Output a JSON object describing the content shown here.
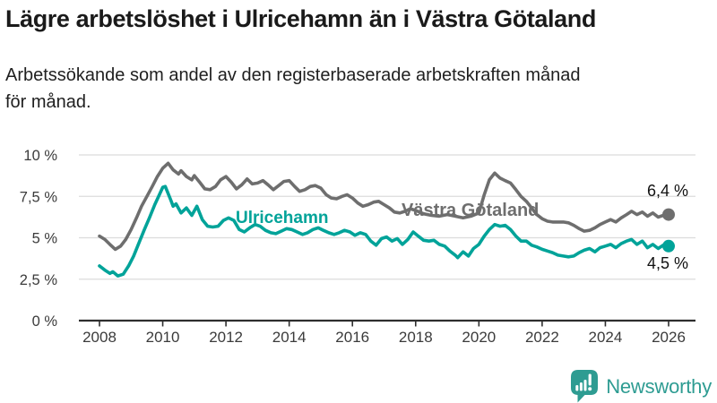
{
  "header": {
    "title": "Lägre arbetslöshet i Ulricehamn än i Västra Götaland",
    "subtitle_line1": "Arbetssökande som andel av den registerbaserade arbetskraften månad",
    "subtitle_line2": "för månad."
  },
  "chart_data": {
    "type": "line",
    "title": "Lägre arbetslöshet i Ulricehamn än i Västra Götaland",
    "subtitle": "Arbetssökande som andel av den registerbaserade arbetskraften månad för månad.",
    "xlabel": "",
    "ylabel": "",
    "unit": "%",
    "grid": true,
    "xlim": [
      2008,
      2026
    ],
    "ylim": [
      0,
      10
    ],
    "x_ticks": [
      2008,
      2010,
      2012,
      2014,
      2016,
      2018,
      2020,
      2022,
      2024,
      2026
    ],
    "y_ticks": [
      {
        "value": 0,
        "label": "0 %"
      },
      {
        "value": 2.5,
        "label": "2,5 %"
      },
      {
        "value": 5,
        "label": "5 %"
      },
      {
        "value": 7.5,
        "label": "7,5 %"
      },
      {
        "value": 10,
        "label": "10 %"
      }
    ],
    "series": [
      {
        "id": "ulricehamn",
        "name": "Ulricehamn",
        "color": "#00a399",
        "end_label": "4,5 %",
        "last_value": 4.5,
        "points": [
          [
            2008.0,
            3.3
          ],
          [
            2008.17,
            3.05
          ],
          [
            2008.33,
            2.85
          ],
          [
            2008.42,
            2.95
          ],
          [
            2008.58,
            2.7
          ],
          [
            2008.75,
            2.8
          ],
          [
            2008.92,
            3.3
          ],
          [
            2009.08,
            3.9
          ],
          [
            2009.25,
            4.7
          ],
          [
            2009.42,
            5.5
          ],
          [
            2009.58,
            6.2
          ],
          [
            2009.75,
            7.0
          ],
          [
            2009.92,
            7.7
          ],
          [
            2010.0,
            8.05
          ],
          [
            2010.08,
            8.1
          ],
          [
            2010.25,
            7.3
          ],
          [
            2010.33,
            6.9
          ],
          [
            2010.42,
            7.05
          ],
          [
            2010.58,
            6.5
          ],
          [
            2010.75,
            6.8
          ],
          [
            2010.92,
            6.35
          ],
          [
            2011.08,
            6.9
          ],
          [
            2011.25,
            6.1
          ],
          [
            2011.42,
            5.7
          ],
          [
            2011.58,
            5.65
          ],
          [
            2011.75,
            5.7
          ],
          [
            2011.92,
            6.05
          ],
          [
            2012.08,
            6.2
          ],
          [
            2012.25,
            6.05
          ],
          [
            2012.42,
            5.5
          ],
          [
            2012.58,
            5.35
          ],
          [
            2012.75,
            5.6
          ],
          [
            2012.92,
            5.8
          ],
          [
            2013.08,
            5.7
          ],
          [
            2013.25,
            5.45
          ],
          [
            2013.42,
            5.3
          ],
          [
            2013.58,
            5.25
          ],
          [
            2013.75,
            5.4
          ],
          [
            2013.92,
            5.55
          ],
          [
            2014.08,
            5.5
          ],
          [
            2014.25,
            5.35
          ],
          [
            2014.42,
            5.2
          ],
          [
            2014.58,
            5.3
          ],
          [
            2014.75,
            5.5
          ],
          [
            2014.92,
            5.6
          ],
          [
            2015.08,
            5.45
          ],
          [
            2015.25,
            5.3
          ],
          [
            2015.42,
            5.2
          ],
          [
            2015.58,
            5.3
          ],
          [
            2015.75,
            5.45
          ],
          [
            2015.92,
            5.35
          ],
          [
            2016.08,
            5.15
          ],
          [
            2016.25,
            5.3
          ],
          [
            2016.42,
            5.2
          ],
          [
            2016.58,
            4.8
          ],
          [
            2016.75,
            4.55
          ],
          [
            2016.92,
            4.95
          ],
          [
            2017.08,
            5.05
          ],
          [
            2017.25,
            4.8
          ],
          [
            2017.42,
            4.95
          ],
          [
            2017.58,
            4.6
          ],
          [
            2017.75,
            4.9
          ],
          [
            2017.92,
            5.35
          ],
          [
            2018.08,
            5.1
          ],
          [
            2018.25,
            4.85
          ],
          [
            2018.42,
            4.8
          ],
          [
            2018.58,
            4.85
          ],
          [
            2018.75,
            4.6
          ],
          [
            2018.92,
            4.5
          ],
          [
            2019.08,
            4.2
          ],
          [
            2019.25,
            3.95
          ],
          [
            2019.33,
            3.8
          ],
          [
            2019.5,
            4.15
          ],
          [
            2019.67,
            3.9
          ],
          [
            2019.83,
            4.35
          ],
          [
            2020.0,
            4.6
          ],
          [
            2020.17,
            5.1
          ],
          [
            2020.33,
            5.5
          ],
          [
            2020.5,
            5.8
          ],
          [
            2020.67,
            5.7
          ],
          [
            2020.83,
            5.75
          ],
          [
            2021.0,
            5.5
          ],
          [
            2021.17,
            5.1
          ],
          [
            2021.33,
            4.8
          ],
          [
            2021.5,
            4.8
          ],
          [
            2021.67,
            4.55
          ],
          [
            2021.83,
            4.45
          ],
          [
            2022.0,
            4.3
          ],
          [
            2022.17,
            4.2
          ],
          [
            2022.33,
            4.1
          ],
          [
            2022.5,
            3.95
          ],
          [
            2022.67,
            3.9
          ],
          [
            2022.83,
            3.85
          ],
          [
            2023.0,
            3.9
          ],
          [
            2023.17,
            4.1
          ],
          [
            2023.33,
            4.25
          ],
          [
            2023.5,
            4.35
          ],
          [
            2023.67,
            4.15
          ],
          [
            2023.83,
            4.4
          ],
          [
            2024.0,
            4.5
          ],
          [
            2024.17,
            4.6
          ],
          [
            2024.33,
            4.4
          ],
          [
            2024.5,
            4.65
          ],
          [
            2024.67,
            4.8
          ],
          [
            2024.83,
            4.9
          ],
          [
            2025.0,
            4.6
          ],
          [
            2025.17,
            4.8
          ],
          [
            2025.33,
            4.4
          ],
          [
            2025.5,
            4.6
          ],
          [
            2025.67,
            4.35
          ],
          [
            2025.83,
            4.55
          ],
          [
            2026.0,
            4.5
          ]
        ]
      },
      {
        "id": "vastra-gotaland",
        "name": "Västra Götaland",
        "color": "#6e6e6e",
        "end_label": "6,4 %",
        "last_value": 6.4,
        "points": [
          [
            2008.0,
            5.1
          ],
          [
            2008.17,
            4.9
          ],
          [
            2008.33,
            4.6
          ],
          [
            2008.5,
            4.3
          ],
          [
            2008.67,
            4.5
          ],
          [
            2008.83,
            4.9
          ],
          [
            2009.0,
            5.5
          ],
          [
            2009.17,
            6.2
          ],
          [
            2009.33,
            6.9
          ],
          [
            2009.5,
            7.5
          ],
          [
            2009.67,
            8.1
          ],
          [
            2009.83,
            8.7
          ],
          [
            2010.0,
            9.2
          ],
          [
            2010.17,
            9.5
          ],
          [
            2010.33,
            9.1
          ],
          [
            2010.5,
            8.85
          ],
          [
            2010.58,
            9.05
          ],
          [
            2010.75,
            8.7
          ],
          [
            2010.92,
            8.5
          ],
          [
            2011.0,
            8.75
          ],
          [
            2011.17,
            8.35
          ],
          [
            2011.33,
            7.95
          ],
          [
            2011.5,
            7.9
          ],
          [
            2011.67,
            8.1
          ],
          [
            2011.83,
            8.5
          ],
          [
            2012.0,
            8.7
          ],
          [
            2012.17,
            8.35
          ],
          [
            2012.33,
            7.95
          ],
          [
            2012.5,
            8.2
          ],
          [
            2012.67,
            8.55
          ],
          [
            2012.83,
            8.25
          ],
          [
            2013.0,
            8.3
          ],
          [
            2013.17,
            8.45
          ],
          [
            2013.33,
            8.2
          ],
          [
            2013.5,
            7.9
          ],
          [
            2013.67,
            8.15
          ],
          [
            2013.83,
            8.4
          ],
          [
            2014.0,
            8.45
          ],
          [
            2014.17,
            8.1
          ],
          [
            2014.33,
            7.8
          ],
          [
            2014.5,
            7.9
          ],
          [
            2014.67,
            8.1
          ],
          [
            2014.83,
            8.15
          ],
          [
            2015.0,
            8.0
          ],
          [
            2015.17,
            7.6
          ],
          [
            2015.33,
            7.4
          ],
          [
            2015.5,
            7.35
          ],
          [
            2015.67,
            7.5
          ],
          [
            2015.83,
            7.6
          ],
          [
            2016.0,
            7.4
          ],
          [
            2016.17,
            7.1
          ],
          [
            2016.33,
            6.9
          ],
          [
            2016.5,
            7.0
          ],
          [
            2016.67,
            7.15
          ],
          [
            2016.83,
            7.2
          ],
          [
            2017.0,
            7.0
          ],
          [
            2017.17,
            6.8
          ],
          [
            2017.33,
            6.55
          ],
          [
            2017.5,
            6.5
          ],
          [
            2017.67,
            6.6
          ],
          [
            2017.83,
            6.75
          ],
          [
            2018.0,
            6.65
          ],
          [
            2018.25,
            6.45
          ],
          [
            2018.5,
            6.35
          ],
          [
            2018.75,
            6.3
          ],
          [
            2019.0,
            6.4
          ],
          [
            2019.25,
            6.3
          ],
          [
            2019.5,
            6.2
          ],
          [
            2019.75,
            6.3
          ],
          [
            2020.0,
            6.5
          ],
          [
            2020.17,
            7.6
          ],
          [
            2020.33,
            8.5
          ],
          [
            2020.5,
            8.9
          ],
          [
            2020.67,
            8.6
          ],
          [
            2020.83,
            8.45
          ],
          [
            2021.0,
            8.3
          ],
          [
            2021.17,
            7.9
          ],
          [
            2021.33,
            7.5
          ],
          [
            2021.5,
            7.2
          ],
          [
            2021.67,
            6.8
          ],
          [
            2021.83,
            6.4
          ],
          [
            2022.0,
            6.15
          ],
          [
            2022.17,
            6.0
          ],
          [
            2022.33,
            5.95
          ],
          [
            2022.5,
            5.95
          ],
          [
            2022.67,
            5.95
          ],
          [
            2022.83,
            5.9
          ],
          [
            2023.0,
            5.75
          ],
          [
            2023.17,
            5.55
          ],
          [
            2023.33,
            5.4
          ],
          [
            2023.5,
            5.45
          ],
          [
            2023.67,
            5.6
          ],
          [
            2023.83,
            5.8
          ],
          [
            2024.0,
            5.95
          ],
          [
            2024.17,
            6.1
          ],
          [
            2024.33,
            5.95
          ],
          [
            2024.5,
            6.2
          ],
          [
            2024.67,
            6.4
          ],
          [
            2024.83,
            6.6
          ],
          [
            2025.0,
            6.4
          ],
          [
            2025.17,
            6.55
          ],
          [
            2025.33,
            6.3
          ],
          [
            2025.5,
            6.5
          ],
          [
            2025.67,
            6.25
          ],
          [
            2025.83,
            6.35
          ],
          [
            2026.0,
            6.4
          ]
        ]
      }
    ]
  },
  "branding": {
    "logo_text": "Newsworthy",
    "logo_color": "#2e9c92"
  }
}
